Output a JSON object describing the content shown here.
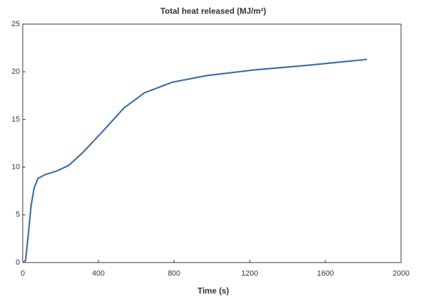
{
  "chart_data": {
    "type": "line",
    "title": "Total heat released (MJ/m²)",
    "x_label": "Time (s)",
    "x": [
      0,
      15,
      30,
      44,
      60,
      80,
      116,
      180,
      244,
      316,
      425,
      535,
      644,
      789,
      971,
      1225,
      1516,
      1820
    ],
    "series": [
      {
        "name": "Total heat released",
        "color": "#3a6fa8",
        "values": [
          0,
          0.2,
          3,
          5.9,
          7.8,
          8.8,
          9.2,
          9.6,
          10.2,
          11.5,
          13.8,
          16.2,
          17.8,
          18.9,
          19.6,
          20.2,
          20.7,
          21.3
        ]
      }
    ],
    "xlim": [
      0,
      2000
    ],
    "xticks": [
      0,
      400,
      800,
      1200,
      1600,
      2000
    ],
    "ylim": [
      0,
      25
    ],
    "yticks": [
      0,
      5,
      10,
      15,
      20,
      25
    ],
    "grid": false
  }
}
